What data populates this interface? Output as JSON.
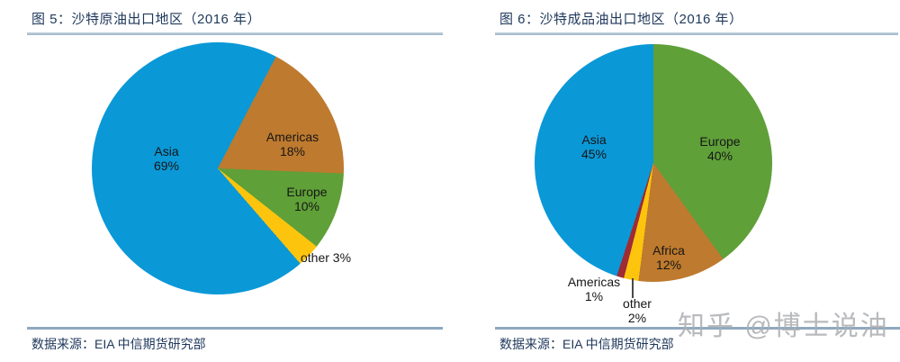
{
  "watermark": "知乎 @博士说油",
  "colors": {
    "title_text": "#20395c",
    "source_text": "#20395c",
    "divider_top": "#9db3c6",
    "divider_bottom": "#8fa9bf",
    "watermark_text": "#abaeb2",
    "pie_blue": "#0a98d7",
    "pie_orange": "#be7a2e",
    "pie_green": "#5fa038",
    "pie_yellow": "#fdc40d",
    "pie_darkred": "#9e2b35"
  },
  "chart_data": [
    {
      "type": "pie",
      "title": "图 5：沙特原油出口地区（2016 年）",
      "source": "数据来源：EIA 中信期货研究部",
      "legend": "none",
      "rotation_deg": 27.5,
      "slices": [
        {
          "name": "Americas",
          "value": 18,
          "pct_label": "18%",
          "color": "#be7a2e"
        },
        {
          "name": "Europe",
          "value": 10,
          "pct_label": "10%",
          "color": "#5fa038"
        },
        {
          "name": "other",
          "value": 3,
          "pct_label": "3%",
          "color": "#fdc40d"
        },
        {
          "name": "Asia",
          "value": 69,
          "pct_label": "69%",
          "color": "#0a98d7"
        }
      ]
    },
    {
      "type": "pie",
      "title": "图 6：沙特成品油出口地区（2016 年）",
      "source": "数据来源：EIA 中信期货研究部",
      "legend": "none",
      "rotation_deg": 0,
      "slices": [
        {
          "name": "Europe",
          "value": 40,
          "pct_label": "40%",
          "color": "#5fa038"
        },
        {
          "name": "Africa",
          "value": 12,
          "pct_label": "12%",
          "color": "#be7a2e"
        },
        {
          "name": "other",
          "value": 2,
          "pct_label": "2%",
          "color": "#fdc40d"
        },
        {
          "name": "Americas",
          "value": 1,
          "pct_label": "1%",
          "color": "#9e2b35"
        },
        {
          "name": "Asia",
          "value": 45,
          "pct_label": "45%",
          "color": "#0a98d7"
        }
      ]
    }
  ]
}
